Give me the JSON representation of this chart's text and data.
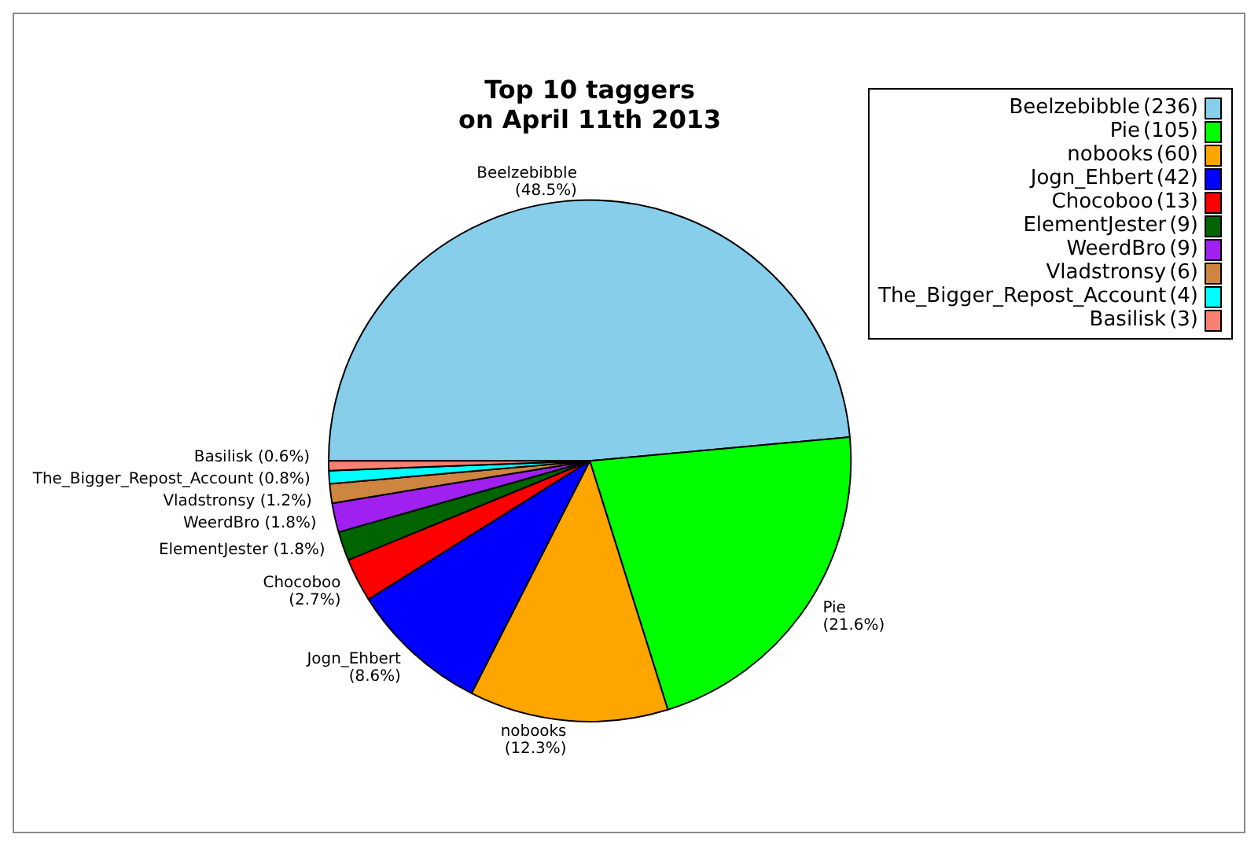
{
  "chart_data": {
    "type": "pie",
    "title": "Top 10 taggers\non April 11th 2013",
    "categories": [
      "Beelzebibble",
      "Pie",
      "nobooks",
      "Jogn_Ehbert",
      "Chocoboo",
      "ElementJester",
      "WeerdBro",
      "Vladstronsy",
      "The_Bigger_Repost_Account",
      "Basilisk"
    ],
    "values": [
      48.5,
      21.6,
      12.3,
      8.6,
      2.7,
      1.8,
      1.8,
      1.2,
      0.8,
      0.6
    ],
    "annotations": [
      "(236)",
      "(105)",
      "(60)",
      "(42)",
      "(13)",
      "(9)",
      "(9)",
      "(6)",
      "(4)",
      "(3)"
    ],
    "value_labels": [
      "(48.5%)",
      "(21.6%)",
      "(12.3%)",
      "(8.6%)",
      "(2.7%)",
      "(1.8%)",
      "(1.8%)",
      "(1.2%)",
      "(0.8%)",
      "(0.6%)"
    ],
    "colors": [
      "#87ceeb",
      "#00ff00",
      "#ffa500",
      "#0000ff",
      "#ff0000",
      "#006400",
      "#a020f0",
      "#cd853f",
      "#00ffff",
      "#fa8072"
    ],
    "legend": "top right"
  }
}
